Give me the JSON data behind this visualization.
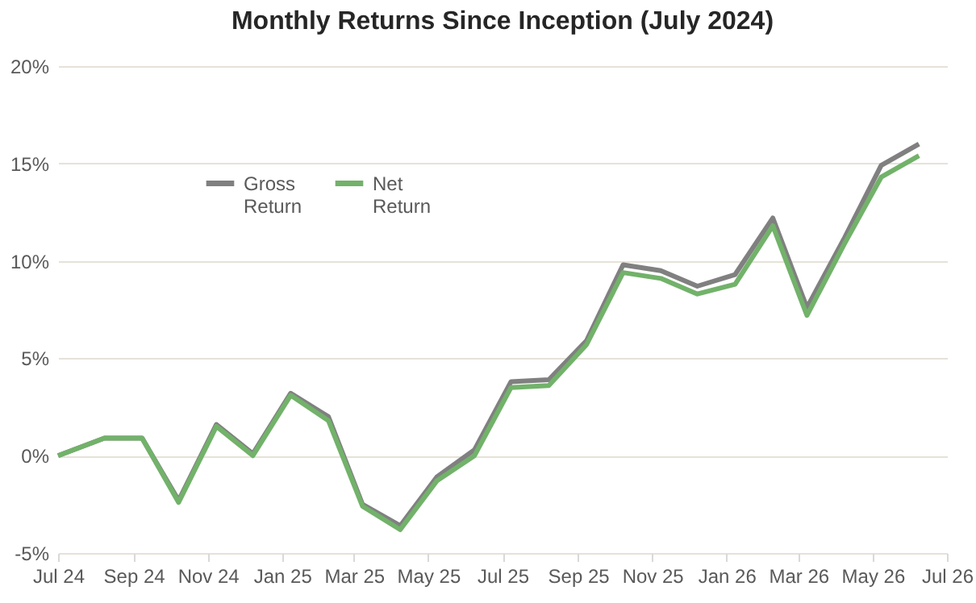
{
  "chart_data": {
    "type": "line",
    "title": "Monthly Returns Since Inception (July 2024)",
    "x": [
      "2024-07-01",
      "2024-08-08",
      "2024-09-08",
      "2024-10-08",
      "2024-11-08",
      "2024-12-08",
      "2025-01-08",
      "2025-02-08",
      "2025-03-08",
      "2025-04-08",
      "2025-05-08",
      "2025-06-08",
      "2025-07-08",
      "2025-08-08",
      "2025-09-08",
      "2025-10-08",
      "2025-11-08",
      "2025-12-08",
      "2026-01-08",
      "2026-02-08",
      "2026-03-08",
      "2026-04-08",
      "2026-05-08",
      "2026-06-08"
    ],
    "series": [
      {
        "name": "Gross Return",
        "color": "#808080",
        "values": [
          0,
          0.9,
          0.9,
          -2.3,
          1.6,
          0.1,
          3.2,
          2.0,
          -2.5,
          -3.6,
          -1.1,
          0.3,
          3.8,
          3.9,
          5.9,
          9.8,
          9.5,
          8.7,
          9.3,
          12.2,
          7.6,
          11.2,
          14.9,
          16.0
        ]
      },
      {
        "name": "Net Return",
        "color": "#72b26a",
        "values": [
          0,
          0.9,
          0.9,
          -2.4,
          1.5,
          0.0,
          3.1,
          1.8,
          -2.6,
          -3.8,
          -1.3,
          0.0,
          3.5,
          3.6,
          5.7,
          9.4,
          9.1,
          8.3,
          8.8,
          11.8,
          7.2,
          10.9,
          14.3,
          15.4
        ]
      }
    ],
    "xlim": [
      "2024-07-01",
      "2026-07-01"
    ],
    "xticks": [
      {
        "value": "2024-07-01",
        "label": "Jul 24"
      },
      {
        "value": "2024-09-01",
        "label": "Sep 24"
      },
      {
        "value": "2024-11-01",
        "label": "Nov 24"
      },
      {
        "value": "2025-01-01",
        "label": "Jan 25"
      },
      {
        "value": "2025-03-01",
        "label": "Mar 25"
      },
      {
        "value": "2025-05-01",
        "label": "May 25"
      },
      {
        "value": "2025-07-01",
        "label": "Jul 25"
      },
      {
        "value": "2025-09-01",
        "label": "Sep 25"
      },
      {
        "value": "2025-11-01",
        "label": "Nov 25"
      },
      {
        "value": "2026-01-01",
        "label": "Jan 26"
      },
      {
        "value": "2026-03-01",
        "label": "Mar 26"
      },
      {
        "value": "2026-05-01",
        "label": "May 26"
      },
      {
        "value": "2026-07-01",
        "label": "Jul 26"
      }
    ],
    "ylim": [
      -5,
      20
    ],
    "yticks": [
      {
        "value": -5,
        "label": "-5%"
      },
      {
        "value": 0,
        "label": "0%"
      },
      {
        "value": 5,
        "label": "5%"
      },
      {
        "value": 10,
        "label": "10%"
      },
      {
        "value": 15,
        "label": "15%"
      },
      {
        "value": 20,
        "label": "20%"
      }
    ],
    "grid": "y",
    "legend": "top left",
    "marker": "none",
    "line_style": "solid"
  }
}
